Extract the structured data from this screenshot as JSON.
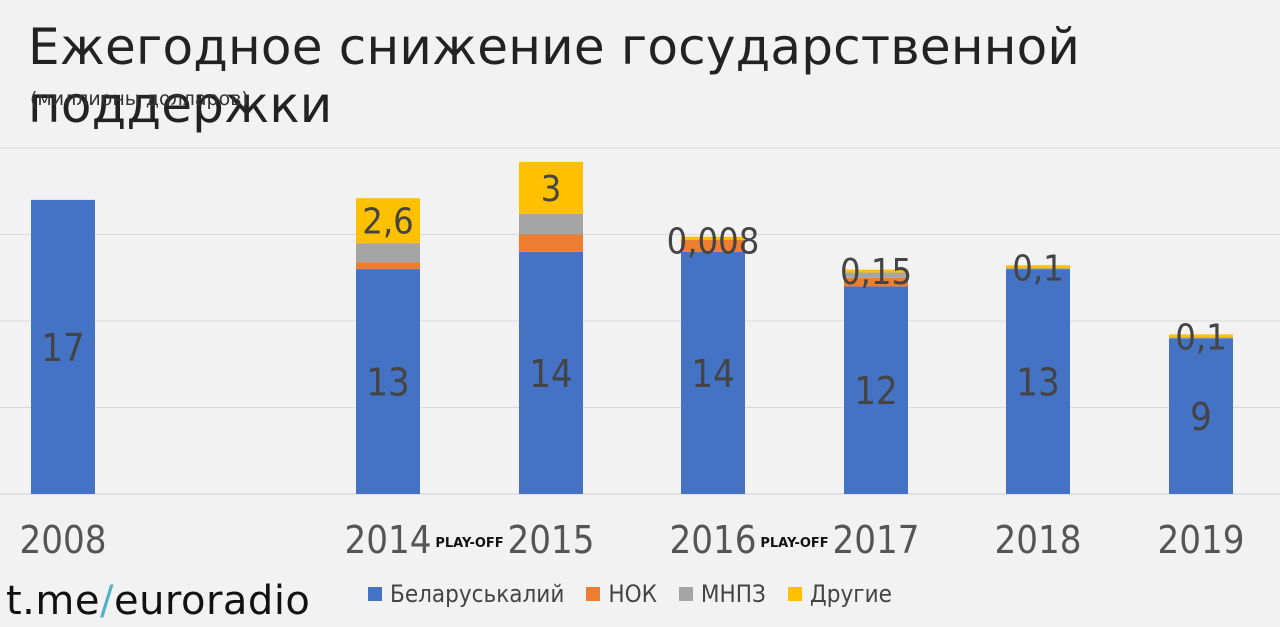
{
  "header": {
    "title": "Ежегодное снижение государственной поддержки",
    "subtitle": "(миллионы долларов)"
  },
  "watermark": {
    "prefix": "t.me",
    "slash": "/",
    "suffix": "euroradio"
  },
  "colors": {
    "belaruskali": "#4472c4",
    "nok": "#ed7d31",
    "mnpz": "#a5a5a5",
    "other": "#ffc000",
    "grid": "#d9d9d9",
    "label_dark": "#444444"
  },
  "chart_data": {
    "type": "bar",
    "stacked": true,
    "categories": [
      "2008",
      "2014",
      "2015",
      "2016",
      "2017",
      "2018",
      "2019"
    ],
    "series": [
      {
        "name": "Беларуськалий",
        "values": [
          17,
          13,
          14,
          14,
          12,
          13,
          9
        ]
      },
      {
        "name": "НОК",
        "values": [
          0,
          0.4,
          1.0,
          0.7,
          0.5,
          0,
          0
        ]
      },
      {
        "name": "МНПЗ",
        "values": [
          0,
          1.1,
          1.2,
          0,
          0.3,
          0.05,
          0.05
        ]
      },
      {
        "name": "Другие",
        "values": [
          0,
          2.6,
          3,
          0.008,
          0.15,
          0.1,
          0.1
        ]
      }
    ],
    "data_labels": [
      {
        "category": "2008",
        "bottom": "17",
        "top": ""
      },
      {
        "category": "2014",
        "bottom": "13",
        "top": "2,6"
      },
      {
        "category": "2015",
        "bottom": "14",
        "top": "3"
      },
      {
        "category": "2016",
        "bottom": "14",
        "top": "0,008"
      },
      {
        "category": "2017",
        "bottom": "12",
        "top": "0,15"
      },
      {
        "category": "2018",
        "bottom": "13",
        "top": "0,1"
      },
      {
        "category": "2019",
        "bottom": "9",
        "top": "0,1"
      }
    ],
    "gap_labels": [
      {
        "after": "2014",
        "text": "PLAY-OFF"
      },
      {
        "after": "2016",
        "text": "PLAY-OFF"
      }
    ],
    "ylim": [
      0,
      20
    ],
    "grid": true,
    "legend_position": "bottom",
    "title": "Ежегодное снижение государственной поддержки",
    "xlabel": "",
    "ylabel": ""
  }
}
